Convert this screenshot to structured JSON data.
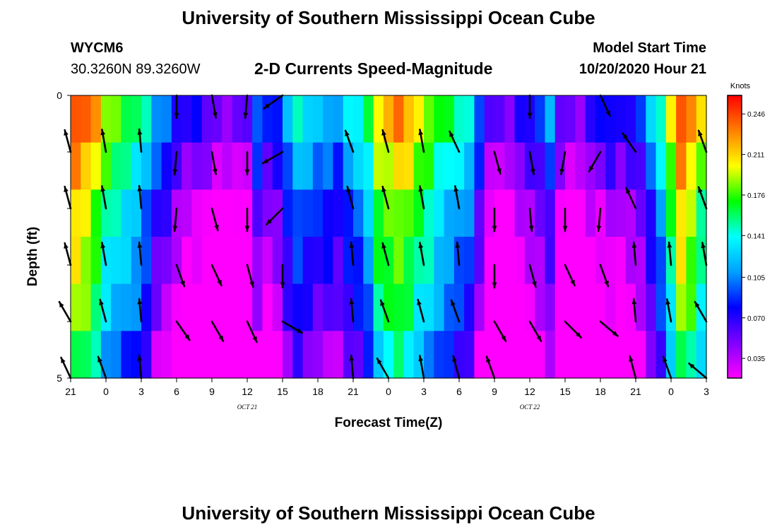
{
  "page": {
    "title_top": "University of Southern Mississippi Ocean Cube",
    "title_bottom": "University of Southern Mississippi Ocean Cube",
    "station_id": "WYCM6",
    "station_coords": "30.3260N 89.3260W",
    "plot_title": "2-D Currents Speed-Magnitude",
    "model_label": "Model Start Time",
    "model_time": "10/20/2020 Hour 21"
  },
  "chart_data": {
    "type": "heatmap",
    "title": "2-D Currents Speed-Magnitude",
    "xlabel": "Forecast Time(Z)",
    "ylabel": "Depth (ft)",
    "ylim": [
      0,
      5
    ],
    "y_ticks": [
      "0",
      "5"
    ],
    "x_ticks": [
      "21",
      "0",
      "3",
      "6",
      "9",
      "12",
      "15",
      "18",
      "21",
      "0",
      "3",
      "6",
      "9",
      "12",
      "15",
      "18",
      "21",
      "0",
      "3"
    ],
    "date_labels": [
      {
        "text": "OCT 21",
        "at_tick": 5
      },
      {
        "text": "OCT 22",
        "at_tick": 13
      }
    ],
    "colorbar": {
      "unit": "Knots",
      "ticks": [
        "0.246",
        "0.211",
        "0.176",
        "0.141",
        "0.105",
        "0.070",
        "0.035"
      ],
      "range": [
        0.018,
        0.262
      ],
      "colors": [
        "#ff00ff",
        "#8000ff",
        "#0000ff",
        "#00a0ff",
        "#00ffff",
        "#00ff00",
        "#ffff00",
        "#ff8000",
        "#ff0000"
      ]
    },
    "series": [
      {
        "name": "speed_knots_by_column",
        "values": [
          0.23,
          0.22,
          0.2,
          0.17,
          0.16,
          0.15,
          0.14,
          0.12,
          0.09,
          0.08,
          0.06,
          0.05,
          0.05,
          0.04,
          0.03,
          0.03,
          0.035,
          0.03,
          0.08,
          0.06,
          0.07,
          0.1,
          0.12,
          0.11,
          0.1,
          0.1,
          0.09,
          0.11,
          0.12,
          0.14,
          0.19,
          0.2,
          0.21,
          0.2,
          0.18,
          0.17,
          0.15,
          0.14,
          0.13,
          0.12,
          0.08,
          0.04,
          0.03,
          0.03,
          0.05,
          0.06,
          0.07,
          0.09,
          0.04,
          0.03,
          0.03,
          0.05,
          0.05,
          0.06,
          0.05,
          0.06,
          0.07,
          0.1,
          0.13,
          0.18,
          0.23,
          0.21,
          0.18
        ]
      },
      {
        "name": "depth_row_offsets",
        "values": [
          0.02,
          0.0,
          -0.02,
          -0.03,
          -0.04,
          -0.06
        ]
      },
      {
        "name": "arrow_time_hours",
        "values": [
          0,
          3,
          6,
          9,
          12,
          15,
          18,
          21,
          24,
          27,
          30,
          33,
          36,
          39,
          42,
          45,
          48,
          51,
          54
        ]
      },
      {
        "name": "arrow_depth_ft",
        "values": [
          0,
          1,
          2,
          3,
          4,
          5
        ]
      },
      {
        "name": "arrow_direction_deg",
        "values": [
          [
            null,
            null,
            null,
            180,
            170,
            185,
            235,
            null,
            null,
            null,
            null,
            null,
            null,
            180,
            null,
            155,
            null,
            null,
            null
          ],
          [
            345,
            350,
            355,
            185,
            170,
            180,
            240,
            null,
            340,
            345,
            350,
            335,
            165,
            170,
            190,
            210,
            325,
            null,
            340
          ],
          [
            345,
            350,
            355,
            185,
            165,
            180,
            225,
            null,
            345,
            345,
            350,
            350,
            180,
            175,
            180,
            185,
            335,
            null,
            340
          ],
          [
            345,
            350,
            355,
            160,
            155,
            165,
            180,
            null,
            355,
            345,
            350,
            355,
            180,
            165,
            155,
            160,
            355,
            355,
            350
          ],
          [
            330,
            345,
            355,
            145,
            150,
            155,
            120,
            null,
            355,
            340,
            345,
            340,
            150,
            150,
            135,
            130,
            355,
            350,
            330
          ],
          [
            335,
            340,
            355,
            null,
            null,
            null,
            null,
            null,
            355,
            330,
            350,
            345,
            340,
            null,
            null,
            null,
            345,
            340,
            310
          ]
        ]
      }
    ]
  }
}
